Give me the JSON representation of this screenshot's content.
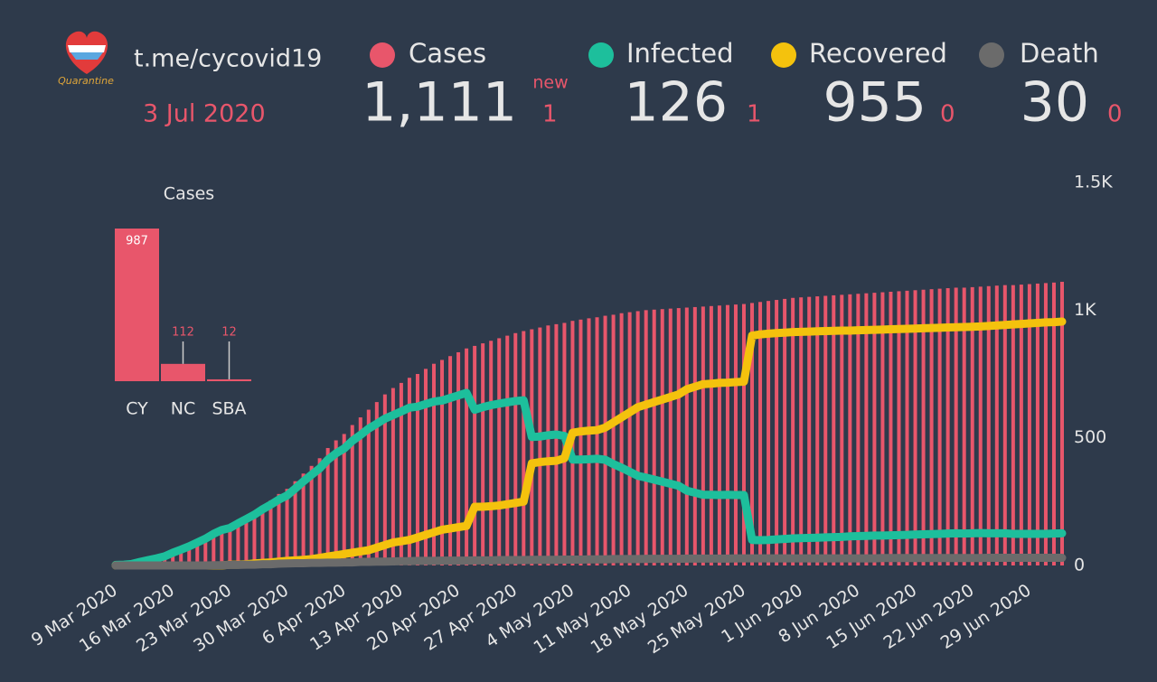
{
  "header": {
    "logo_text": "Quarantine",
    "site": "t.me/cycovid19",
    "date": "3 Jul 2020",
    "new_label": "new",
    "stats": [
      {
        "value": "1,111",
        "new": "1"
      },
      {
        "value": "126",
        "new": "1"
      },
      {
        "value": "955",
        "new": "0"
      },
      {
        "value": "30",
        "new": "0"
      }
    ]
  },
  "chart_data": [
    {
      "type": "combo",
      "categories": [
        "9 Mar 2020",
        null,
        null,
        null,
        null,
        null,
        null,
        "16 Mar 2020",
        null,
        null,
        null,
        null,
        null,
        null,
        "23 Mar 2020",
        null,
        null,
        null,
        null,
        null,
        null,
        "30 Mar 2020",
        null,
        null,
        null,
        null,
        null,
        null,
        "6 Apr 2020",
        null,
        null,
        null,
        null,
        null,
        null,
        "13 Apr 2020",
        null,
        null,
        null,
        null,
        null,
        null,
        "20 Apr 2020",
        null,
        null,
        null,
        null,
        null,
        null,
        "27 Apr 2020",
        null,
        null,
        null,
        null,
        null,
        null,
        "4 May 2020",
        null,
        null,
        null,
        null,
        null,
        null,
        "11 May 2020",
        null,
        null,
        null,
        null,
        null,
        null,
        "18 May 2020",
        null,
        null,
        null,
        null,
        null,
        null,
        "25 May 2020",
        null,
        null,
        null,
        null,
        null,
        null,
        "1 Jun 2020",
        null,
        null,
        null,
        null,
        null,
        null,
        "8 Jun 2020",
        null,
        null,
        null,
        null,
        null,
        null,
        "15 Jun 2020",
        null,
        null,
        null,
        null,
        null,
        null,
        "22 Jun 2020",
        null,
        null,
        null,
        null,
        null,
        null,
        "29 Jun 2020",
        null,
        null,
        null,
        null
      ],
      "ylim": [
        0,
        1500
      ],
      "yticks": [
        0,
        500,
        {
          "value": 1000,
          "label": "1K"
        },
        {
          "value": 1500,
          "label": "1.5K"
        }
      ],
      "grid": false,
      "series": [
        {
          "name": "Cases",
          "type": "bar",
          "color": "#e8566b",
          "values": [
            2,
            3,
            6,
            14,
            21,
            28,
            36,
            50,
            62,
            75,
            90,
            105,
            125,
            140,
            152,
            170,
            190,
            210,
            235,
            255,
            280,
            300,
            330,
            360,
            390,
            420,
            460,
            490,
            515,
            550,
            580,
            610,
            640,
            670,
            695,
            715,
            735,
            750,
            770,
            790,
            805,
            820,
            835,
            850,
            860,
            870,
            880,
            890,
            900,
            910,
            918,
            925,
            932,
            940,
            945,
            950,
            958,
            963,
            968,
            972,
            978,
            982,
            988,
            992,
            996,
            1000,
            1002,
            1004,
            1006,
            1008,
            1010,
            1012,
            1014,
            1016,
            1018,
            1020,
            1022,
            1024,
            1028,
            1032,
            1036,
            1040,
            1044,
            1048,
            1050,
            1052,
            1054,
            1056,
            1058,
            1060,
            1062,
            1064,
            1066,
            1068,
            1070,
            1072,
            1074,
            1076,
            1078,
            1080,
            1082,
            1084,
            1086,
            1088,
            1088,
            1090,
            1092,
            1094,
            1096,
            1098,
            1098,
            1100,
            1102,
            1104,
            1106,
            1108,
            1111
          ]
        },
        {
          "name": "Infected",
          "type": "line",
          "color": "#1dbf9c",
          "values": [
            2,
            3,
            6,
            14,
            21,
            28,
            36,
            50,
            62,
            75,
            90,
            105,
            124,
            139,
            147,
            165,
            182,
            199,
            220,
            238,
            258,
            274,
            301,
            329,
            355,
            380,
            414,
            439,
            458,
            488,
            511,
            536,
            555,
            575,
            589,
            603,
            618,
            622,
            632,
            642,
            646,
            656,
            666,
            676,
            610,
            620,
            628,
            634,
            639,
            644,
            647,
            503,
            505,
            510,
            513,
            507,
            415,
            415,
            416,
            418,
            414,
            397,
            383,
            367,
            351,
            344,
            336,
            328,
            320,
            312,
            293,
            285,
            277,
            277,
            276,
            277,
            276,
            276,
            100,
            99,
            100,
            102,
            104,
            106,
            107,
            108,
            109,
            110,
            111,
            112,
            114,
            115,
            116,
            117,
            117,
            118,
            119,
            120,
            121,
            122,
            123,
            124,
            125,
            126,
            125,
            126,
            127,
            126,
            126,
            126,
            124,
            124,
            124,
            124,
            124,
            125,
            126
          ]
        },
        {
          "name": "Recovered",
          "type": "line",
          "color": "#f4c20d",
          "values": [
            0,
            0,
            0,
            0,
            0,
            0,
            0,
            0,
            0,
            0,
            0,
            0,
            0,
            0,
            3,
            3,
            5,
            8,
            10,
            12,
            15,
            18,
            20,
            22,
            25,
            30,
            35,
            40,
            45,
            50,
            55,
            60,
            70,
            80,
            90,
            95,
            100,
            110,
            120,
            130,
            140,
            145,
            150,
            155,
            230,
            230,
            232,
            235,
            240,
            245,
            250,
            400,
            405,
            408,
            410,
            420,
            520,
            525,
            528,
            530,
            540,
            560,
            580,
            600,
            620,
            630,
            640,
            650,
            660,
            670,
            690,
            700,
            710,
            712,
            715,
            716,
            718,
            720,
            900,
            905,
            908,
            910,
            912,
            914,
            915,
            916,
            917,
            918,
            919,
            920,
            920,
            921,
            922,
            923,
            924,
            925,
            926,
            927,
            928,
            929,
            930,
            931,
            932,
            933,
            934,
            935,
            936,
            938,
            940,
            942,
            944,
            946,
            948,
            950,
            952,
            953,
            955
          ]
        },
        {
          "name": "Death",
          "type": "line",
          "color": "#6b6b6b",
          "values": [
            0,
            0,
            0,
            0,
            0,
            0,
            0,
            0,
            0,
            0,
            0,
            0,
            1,
            1,
            2,
            2,
            3,
            3,
            5,
            5,
            7,
            8,
            9,
            9,
            10,
            10,
            11,
            11,
            12,
            12,
            14,
            14,
            15,
            15,
            16,
            17,
            17,
            18,
            18,
            18,
            19,
            19,
            19,
            19,
            20,
            20,
            20,
            21,
            21,
            21,
            21,
            22,
            22,
            22,
            22,
            23,
            23,
            23,
            24,
            24,
            24,
            25,
            25,
            25,
            25,
            26,
            26,
            26,
            26,
            26,
            27,
            27,
            27,
            27,
            27,
            27,
            28,
            28,
            28,
            28,
            28,
            28,
            28,
            28,
            28,
            28,
            28,
            28,
            28,
            28,
            28,
            28,
            28,
            28,
            29,
            29,
            29,
            29,
            29,
            29,
            29,
            29,
            29,
            29,
            29,
            29,
            29,
            30,
            30,
            30,
            30,
            30,
            30,
            30,
            30,
            30,
            30
          ]
        }
      ]
    },
    {
      "type": "bar",
      "title": "Cases",
      "categories": [
        "CY",
        "NC",
        "SBA"
      ],
      "values": [
        987,
        112,
        12
      ],
      "color": "#e8566b"
    }
  ]
}
